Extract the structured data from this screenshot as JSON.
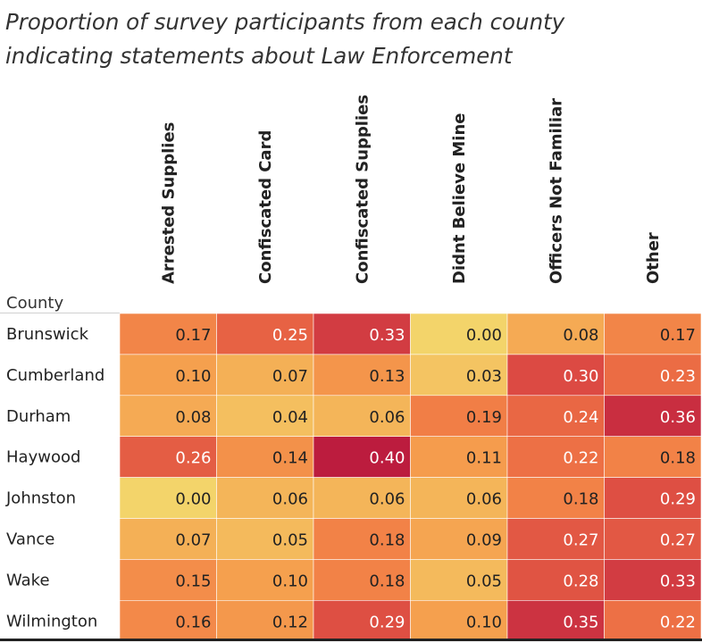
{
  "chart_data": {
    "type": "heatmap",
    "title_lines": [
      "Proportion of survey participants from each county",
      "indicating statements about Law Enforcement"
    ],
    "row_header": "County",
    "columns": [
      "Arrested Supplies",
      "Confiscated Card",
      "Confiscated Supplies",
      "Didnt Believe Mine",
      "Officers Not Familiar",
      "Other"
    ],
    "rows": [
      "Brunswick",
      "Cumberland",
      "Durham",
      "Haywood",
      "Johnston",
      "Vance",
      "Wake",
      "Wilmington"
    ],
    "values": [
      [
        0.17,
        0.25,
        0.33,
        0.0,
        0.08,
        0.17
      ],
      [
        0.1,
        0.07,
        0.13,
        0.03,
        0.3,
        0.23
      ],
      [
        0.08,
        0.04,
        0.06,
        0.19,
        0.24,
        0.36
      ],
      [
        0.26,
        0.14,
        0.4,
        0.11,
        0.22,
        0.18
      ],
      [
        0.0,
        0.06,
        0.06,
        0.06,
        0.18,
        0.29
      ],
      [
        0.07,
        0.05,
        0.18,
        0.09,
        0.27,
        0.27
      ],
      [
        0.15,
        0.1,
        0.18,
        0.05,
        0.28,
        0.33
      ],
      [
        0.16,
        0.12,
        0.29,
        0.1,
        0.35,
        0.22
      ]
    ],
    "color_scale": [
      "#f3d46a",
      "#f5a04e",
      "#f17a45",
      "#dc4a43",
      "#bc1c3e"
    ],
    "value_range": [
      0,
      0.4
    ]
  }
}
